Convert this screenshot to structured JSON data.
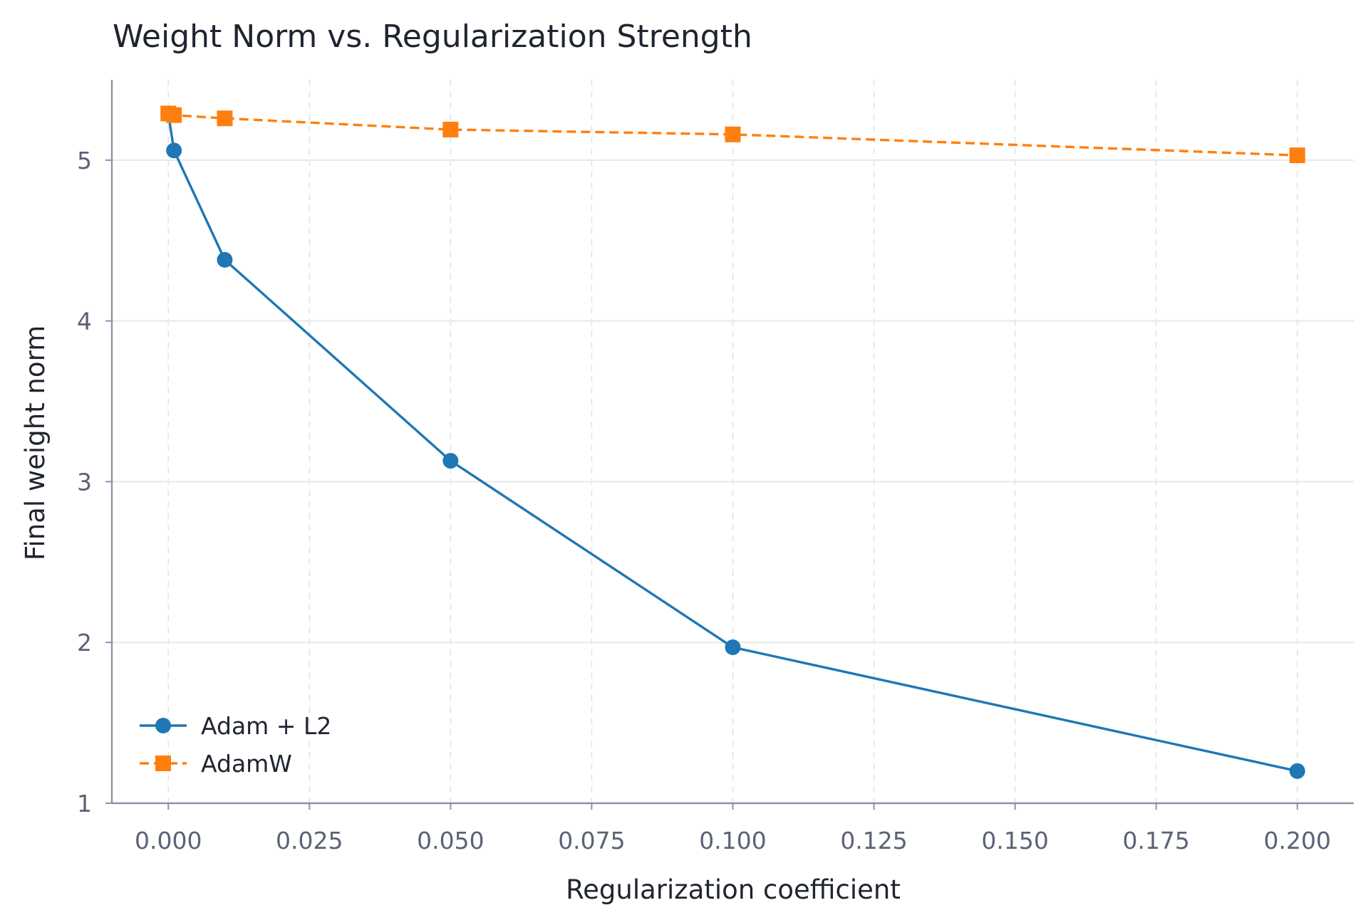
{
  "chart_data": {
    "type": "line",
    "title": "Weight Norm vs. Regularization Strength",
    "xlabel": "Regularization coefficient",
    "ylabel": "Final weight norm",
    "xlim": [
      -0.01,
      0.21
    ],
    "ylim": [
      1.0,
      5.5
    ],
    "x_ticks": [
      "0.000",
      "0.025",
      "0.050",
      "0.075",
      "0.100",
      "0.125",
      "0.150",
      "0.175",
      "0.200"
    ],
    "y_ticks": [
      "1",
      "2",
      "3",
      "4",
      "5"
    ],
    "grid": true,
    "legend": "lower-left",
    "series": [
      {
        "name": "Adam + L2",
        "color": "#1f77b4",
        "marker": "circle",
        "linestyle": "solid",
        "x": [
          0.0,
          0.001,
          0.01,
          0.05,
          0.1,
          0.2
        ],
        "y": [
          5.29,
          5.06,
          4.38,
          3.13,
          1.97,
          1.2
        ]
      },
      {
        "name": "AdamW",
        "color": "#ff7f0e",
        "marker": "square",
        "linestyle": "dashed",
        "x": [
          0.0,
          0.001,
          0.01,
          0.05,
          0.1,
          0.2
        ],
        "y": [
          5.29,
          5.28,
          5.26,
          5.19,
          5.16,
          5.03
        ]
      }
    ]
  }
}
